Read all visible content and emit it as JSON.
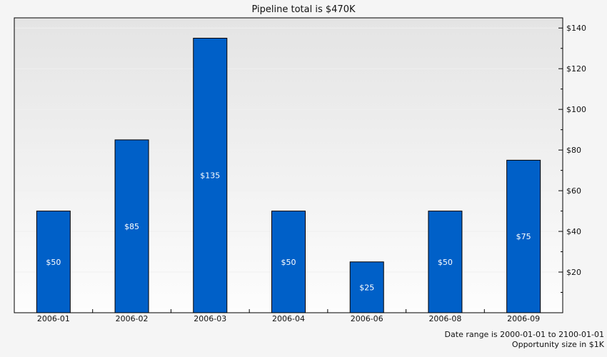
{
  "chart_data": {
    "type": "bar",
    "title": "Pipeline total is $470K",
    "categories": [
      "2006-01",
      "2006-02",
      "2006-03",
      "2006-04",
      "2006-06",
      "2006-08",
      "2006-09"
    ],
    "values": [
      50,
      85,
      135,
      50,
      25,
      50,
      75
    ],
    "data_labels": [
      "$50",
      "$85",
      "$135",
      "$50",
      "$25",
      "$50",
      "$75"
    ],
    "xlabel": "",
    "ylabel": "",
    "ylim": [
      0,
      145
    ],
    "y_ticks": [
      20,
      40,
      60,
      80,
      100,
      120,
      140
    ],
    "y_tick_labels": [
      "$20",
      "$40",
      "$60",
      "$80",
      "$100",
      "$120",
      "$140"
    ],
    "y_axis_side": "right",
    "grid": true,
    "bar_color": "#0060c8"
  },
  "footnotes": {
    "line1": "Date range is 2000-01-01 to 2100-01-01",
    "line2": "Opportunity size in $1K"
  }
}
